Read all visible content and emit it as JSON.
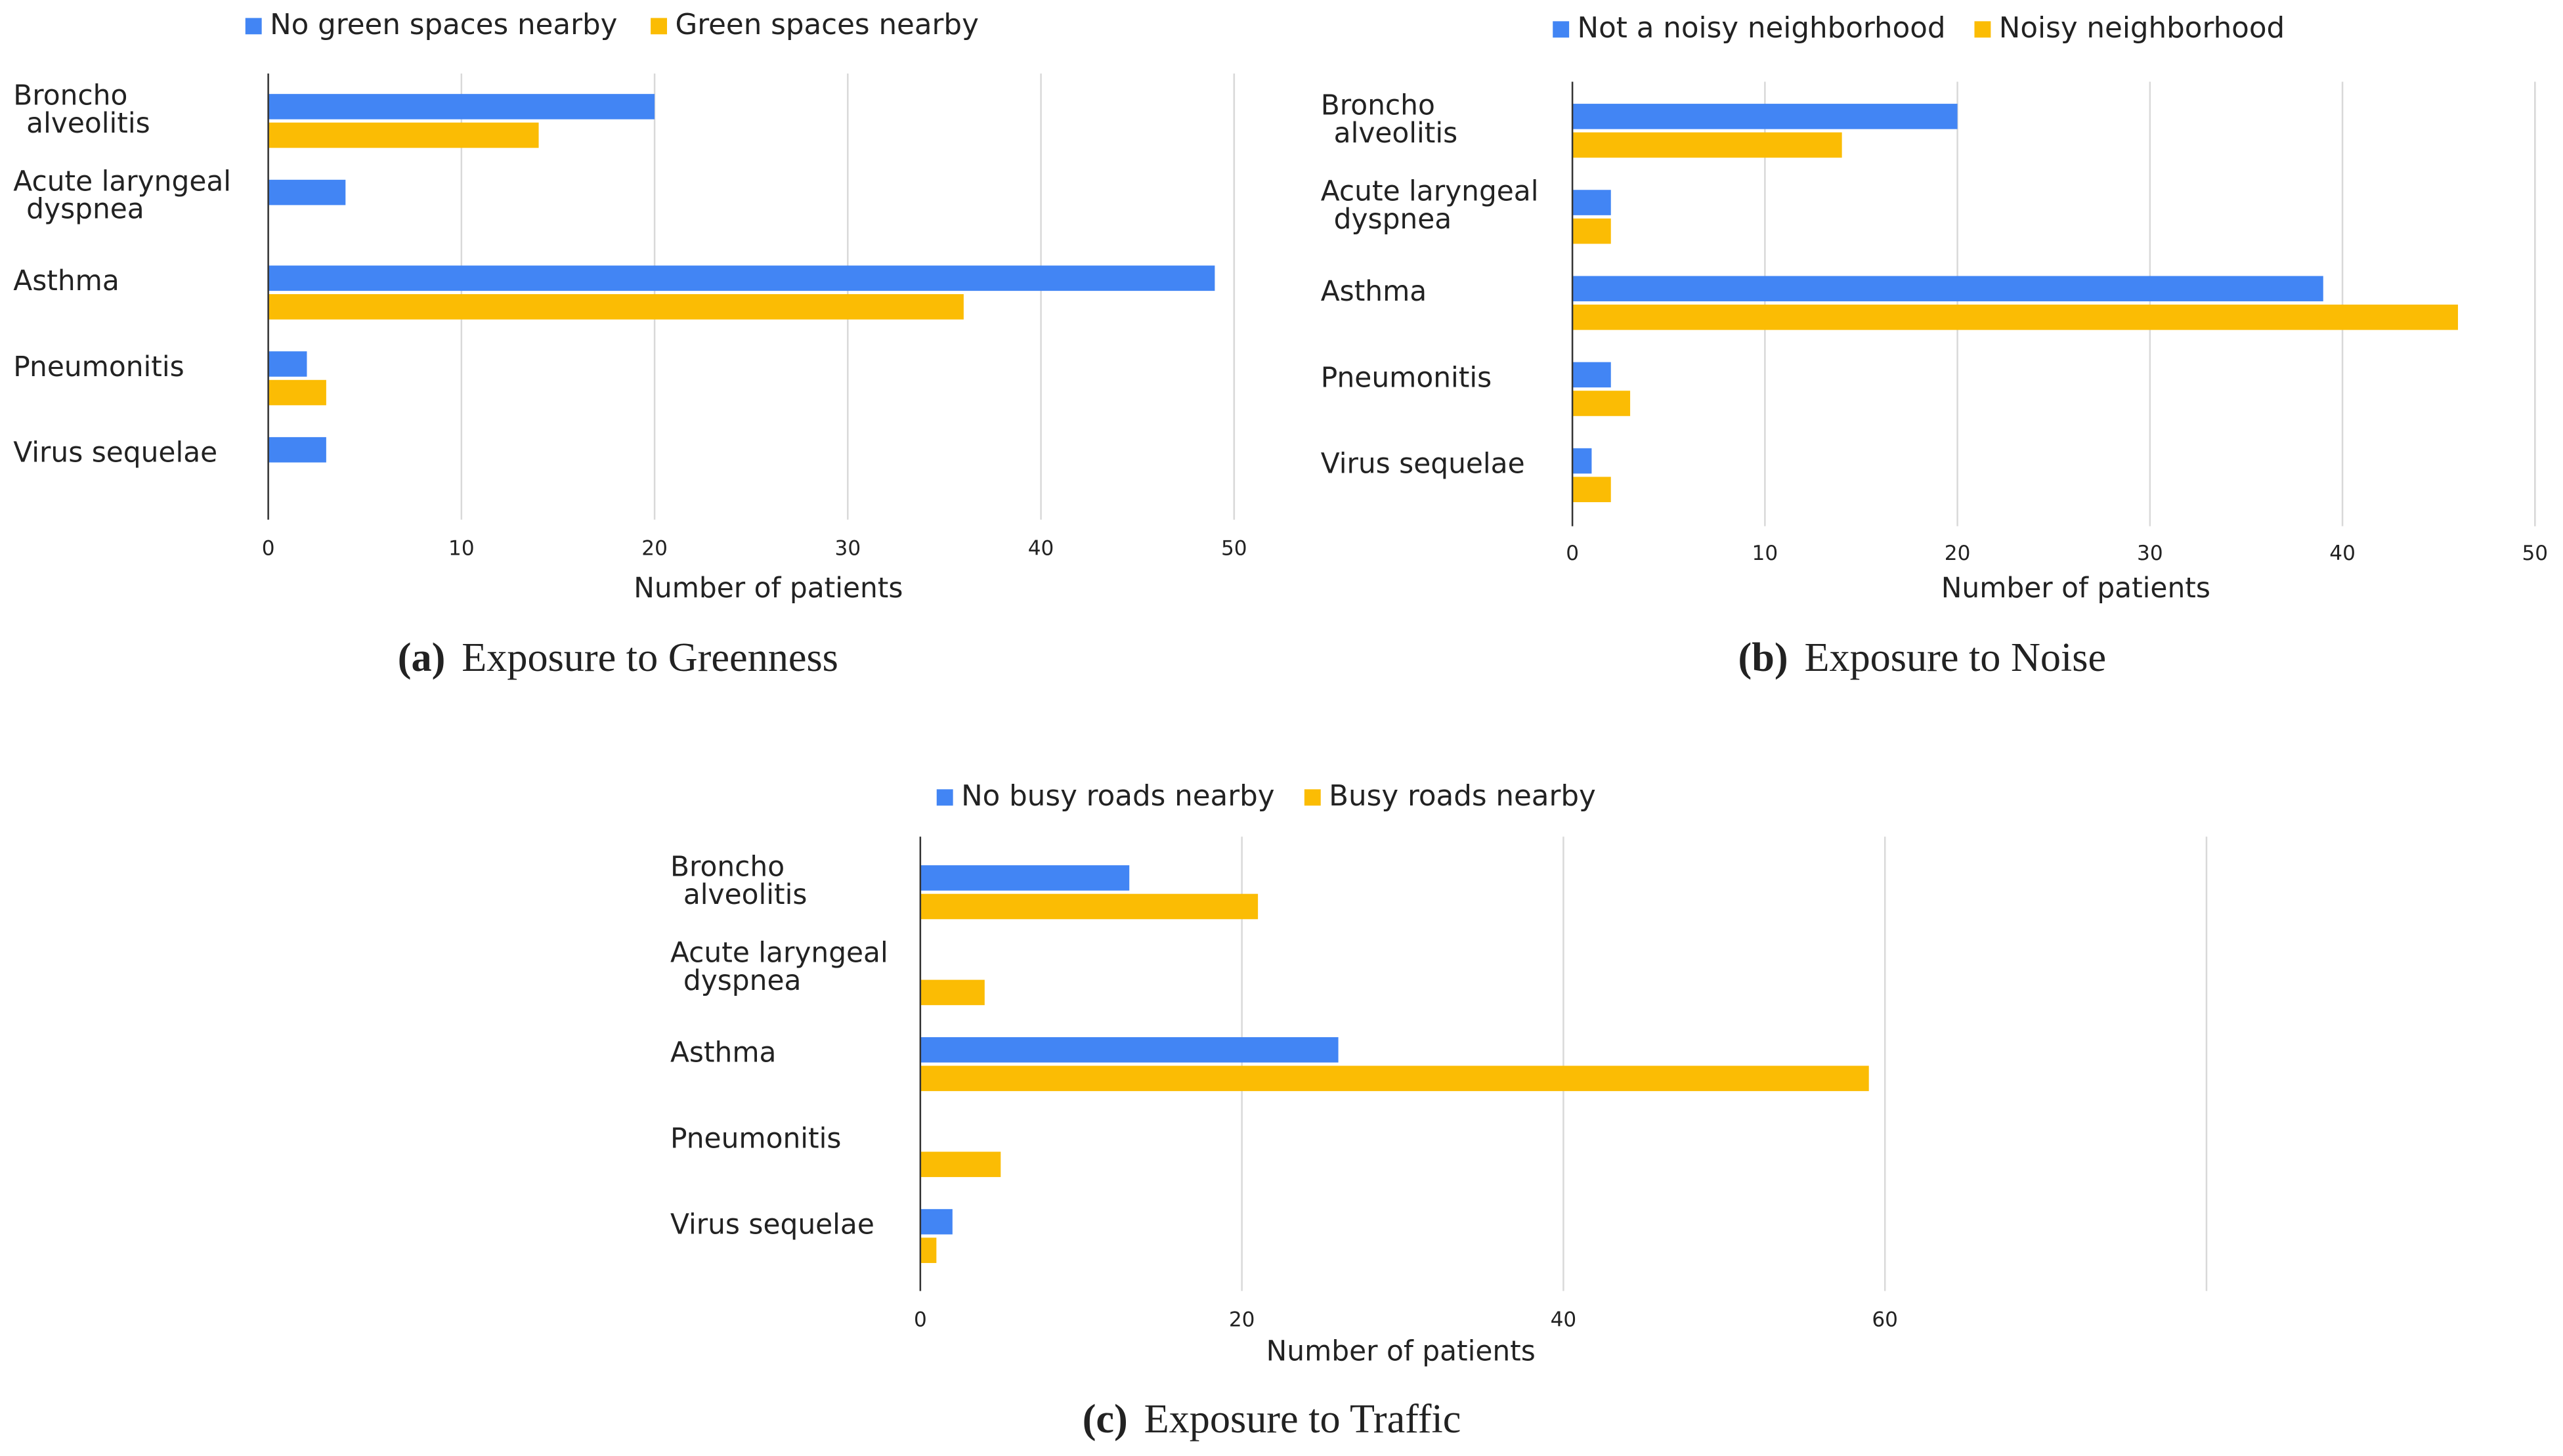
{
  "chart_data": [
    {
      "type": "bar",
      "orientation": "horizontal",
      "caption": "(a)",
      "caption_text": "Exposure to Greenness",
      "xlabel": "Number of patients",
      "categories": [
        [
          "Broncho",
          "alveolitis"
        ],
        [
          "Acute laryngeal",
          "dyspnea"
        ],
        [
          "Asthma"
        ],
        [
          "Pneumonitis"
        ],
        [
          "Virus sequelae"
        ]
      ],
      "series": [
        {
          "name": "No green spaces nearby",
          "color": "#4285f4",
          "values": [
            20,
            4,
            49,
            2,
            3
          ]
        },
        {
          "name": "Green spaces nearby",
          "color": "#fbbc04",
          "values": [
            14,
            0,
            36,
            3,
            0
          ]
        }
      ],
      "xlim": [
        0,
        50
      ],
      "xticks": [
        0,
        10,
        20,
        30,
        40,
        50
      ],
      "grid": true,
      "legend": "top"
    },
    {
      "type": "bar",
      "orientation": "horizontal",
      "caption": "(b)",
      "caption_text": "Exposure to Noise",
      "xlabel": "Number of patients",
      "categories": [
        [
          "Broncho",
          "alveolitis"
        ],
        [
          "Acute laryngeal",
          "dyspnea"
        ],
        [
          "Asthma"
        ],
        [
          "Pneumonitis"
        ],
        [
          "Virus sequelae"
        ]
      ],
      "series": [
        {
          "name": "Not a noisy neighborhood",
          "color": "#4285f4",
          "values": [
            20,
            2,
            39,
            2,
            1
          ]
        },
        {
          "name": "Noisy neighborhood",
          "color": "#fbbc04",
          "values": [
            14,
            2,
            46,
            3,
            2
          ]
        }
      ],
      "xlim": [
        0,
        50
      ],
      "xticks": [
        0,
        10,
        20,
        30,
        40,
        50
      ],
      "grid": true,
      "legend": "top"
    },
    {
      "type": "bar",
      "orientation": "horizontal",
      "caption": "(c)",
      "caption_text": "Exposure to Traffic",
      "xlabel": "Number of patients",
      "categories": [
        [
          "Broncho",
          "alveolitis"
        ],
        [
          "Acute laryngeal",
          "dyspnea"
        ],
        [
          "Asthma"
        ],
        [
          "Pneumonitis"
        ],
        [
          "Virus sequelae"
        ]
      ],
      "series": [
        {
          "name": "No busy roads nearby",
          "color": "#4285f4",
          "values": [
            13,
            0,
            26,
            0,
            2
          ]
        },
        {
          "name": "Busy roads nearby",
          "color": "#fbbc04",
          "values": [
            21,
            4,
            59,
            5,
            1
          ]
        }
      ],
      "xlim": [
        0,
        80
      ],
      "xticks": [
        0,
        20,
        40,
        60
      ],
      "grid": true,
      "legend": "top"
    }
  ]
}
